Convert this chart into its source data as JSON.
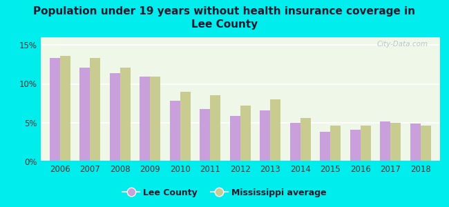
{
  "title": "Population under 19 years without health insurance coverage in\nLee County",
  "years": [
    2006,
    2007,
    2008,
    2009,
    2010,
    2011,
    2012,
    2013,
    2014,
    2015,
    2016,
    2017,
    2018
  ],
  "lee_county": [
    13.3,
    12.1,
    11.4,
    10.9,
    7.8,
    6.8,
    5.9,
    6.6,
    5.0,
    3.8,
    4.1,
    5.2,
    4.9
  ],
  "ms_average": [
    13.6,
    13.3,
    12.1,
    10.9,
    9.0,
    8.5,
    7.2,
    8.0,
    5.6,
    4.6,
    4.6,
    5.0,
    4.6
  ],
  "lee_color": "#c9a0dc",
  "ms_color": "#c8cc90",
  "bg_outer": "#00eded",
  "bg_inner_top": "#f0f8e8",
  "bg_inner_bottom": "#e8f4e0",
  "ylim": [
    0,
    16
  ],
  "yticks": [
    0,
    5,
    10,
    15
  ],
  "ytick_labels": [
    "0%",
    "5%",
    "10%",
    "15%"
  ],
  "bar_width": 0.35,
  "watermark": "City-Data.com",
  "legend_lee": "Lee County",
  "legend_ms": "Mississippi average",
  "title_color": "#1a1a2e",
  "tick_color": "#333333"
}
